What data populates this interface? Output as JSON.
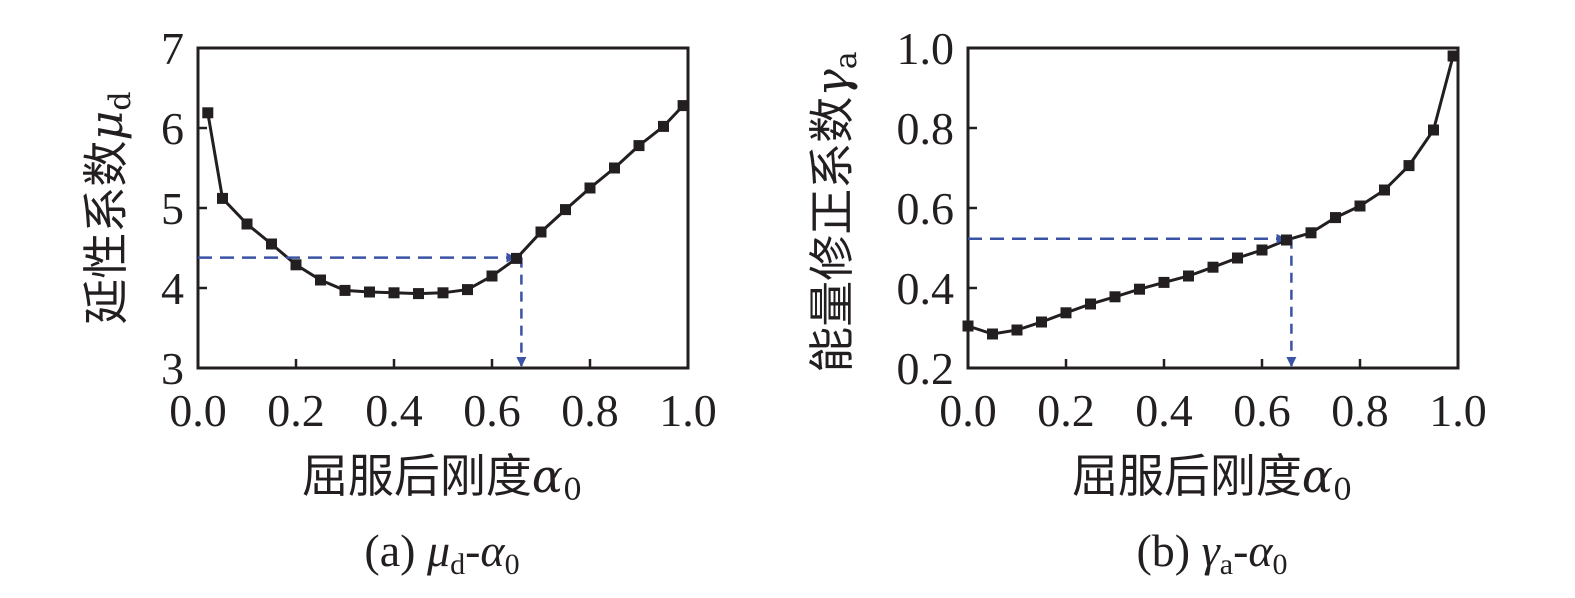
{
  "chart_data": [
    {
      "type": "line",
      "caption_prefix": "(a) ",
      "caption_sym": "μ",
      "caption_sub": "d",
      "caption_dash": "-",
      "caption_sym2": "α",
      "caption_sub2": "0",
      "xlabel_text": "屈服后刚度",
      "xlabel_sym": "α",
      "xlabel_sub": "0",
      "ylabel_text": "延性系数",
      "ylabel_sym": "μ",
      "ylabel_sub": "d",
      "xlim": [
        0,
        1
      ],
      "ylim": [
        3,
        7
      ],
      "xticks": [
        "0.0",
        "0.2",
        "0.4",
        "0.6",
        "0.8",
        "1.0"
      ],
      "xtick_values": [
        0,
        0.2,
        0.4,
        0.6,
        0.8,
        1.0
      ],
      "yticks": [
        "3",
        "4",
        "5",
        "6",
        "7"
      ],
      "ytick_values": [
        3,
        4,
        5,
        6,
        7
      ],
      "x": [
        0.02,
        0.05,
        0.1,
        0.15,
        0.2,
        0.25,
        0.3,
        0.35,
        0.4,
        0.45,
        0.5,
        0.55,
        0.6,
        0.65,
        0.7,
        0.75,
        0.8,
        0.85,
        0.9,
        0.95,
        0.99
      ],
      "y": [
        6.19,
        5.12,
        4.8,
        4.55,
        4.29,
        4.1,
        3.97,
        3.95,
        3.94,
        3.93,
        3.94,
        3.98,
        4.15,
        4.37,
        4.7,
        4.98,
        5.25,
        5.5,
        5.78,
        6.02,
        6.28
      ],
      "guide": {
        "x": 0.66,
        "y": 4.38
      },
      "line_color": "#231f20",
      "guide_color": "#3a53a4"
    },
    {
      "type": "line",
      "caption_prefix": "(b) ",
      "caption_sym": "γ",
      "caption_sub": "a",
      "caption_dash": "-",
      "caption_sym2": "α",
      "caption_sub2": "0",
      "xlabel_text": "屈服后刚度",
      "xlabel_sym": "α",
      "xlabel_sub": "0",
      "ylabel_text": "能量修正系数",
      "ylabel_sym": "γ",
      "ylabel_sub": "a",
      "xlim": [
        0,
        1
      ],
      "ylim": [
        0.2,
        1.0
      ],
      "xticks": [
        "0.0",
        "0.2",
        "0.4",
        "0.6",
        "0.8",
        "1.0"
      ],
      "xtick_values": [
        0,
        0.2,
        0.4,
        0.6,
        0.8,
        1.0
      ],
      "yticks": [
        "0.2",
        "0.4",
        "0.6",
        "0.8",
        "1.0"
      ],
      "ytick_values": [
        0.2,
        0.4,
        0.6,
        0.8,
        1.0
      ],
      "x": [
        0.0,
        0.05,
        0.1,
        0.15,
        0.2,
        0.25,
        0.3,
        0.35,
        0.4,
        0.45,
        0.5,
        0.55,
        0.6,
        0.65,
        0.7,
        0.75,
        0.8,
        0.85,
        0.9,
        0.95,
        0.99
      ],
      "y": [
        0.305,
        0.285,
        0.295,
        0.315,
        0.338,
        0.36,
        0.378,
        0.397,
        0.414,
        0.43,
        0.452,
        0.475,
        0.495,
        0.52,
        0.538,
        0.576,
        0.605,
        0.645,
        0.706,
        0.795,
        0.98
      ],
      "guide": {
        "x": 0.66,
        "y": 0.523
      },
      "line_color": "#231f20",
      "guide_color": "#3a53a4"
    }
  ]
}
